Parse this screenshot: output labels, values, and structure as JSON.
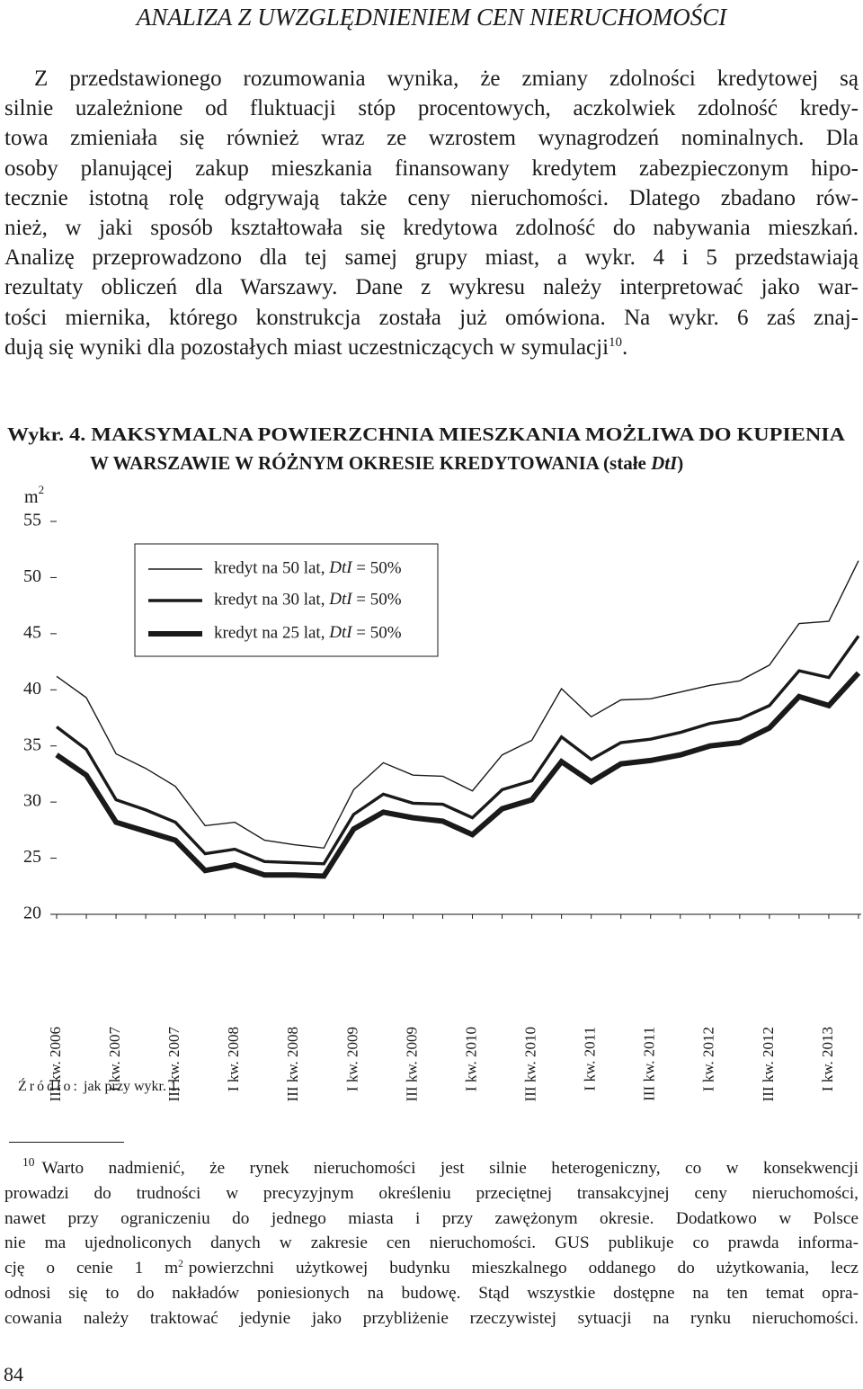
{
  "header": {
    "title": "ANALIZA Z UWZGLĘDNIENIEM CEN NIERUCHOMOŚCI"
  },
  "paragraph": {
    "lines": [
      "Z przedstawionego rozumowania wynika, że zmiany zdolności kredytowej są",
      "silnie uzależnione od fluktuacji stóp procentowych, aczkolwiek zdolność kredy-",
      "towa zmieniała się również wraz ze wzrostem wynagrodzeń nominalnych. Dla",
      "osoby planującej zakup mieszkania finansowany kredytem zabezpieczonym hipo-",
      "tecznie istotną rolę odgrywają także ceny nieruchomości. Dlatego zbadano rów-",
      "nież, w jaki sposób kształtowała się kredytowa zdolność do nabywania mieszkań.",
      "Analizę przeprowadzono dla tej samej grupy miast, a wykr. 4 i 5 przedstawiają",
      "rezultaty obliczeń dla Warszawy. Dane z wykresu należy interpretować jako war-",
      "tości miernika, którego konstrukcja została już omówiona. Na wykr. 6 zaś znaj-",
      "dują się wyniki dla pozostałych miast uczestniczących w symulacji"
    ],
    "footnote_ref": "10",
    "end": "."
  },
  "chart_data": {
    "type": "line",
    "title": [
      "Wykr. 4. MAKSYMALNA POWIERZCHNIA MIESZKANIA MOŻLIWA DO KUPIENIA",
      "W WARSZAWIE W RÓŻNYM OKRESIE KREDYTOWANIA (stałe DtI)"
    ],
    "y_unit": "m",
    "y_unit_sup": "2",
    "categories": [
      "III kw. 2006",
      null,
      "I kw. 2007",
      null,
      "III kw. 2007",
      null,
      "I kw. 2008",
      null,
      "III kw. 2008",
      null,
      "I kw. 2009",
      null,
      "III kw. 2009",
      null,
      "I kw. 2010",
      null,
      "III kw. 2010",
      null,
      "I kw. 2011",
      null,
      "III kw. 2011",
      null,
      "I kw. 2012",
      null,
      "III kw. 2012",
      null,
      "I kw. 2013",
      null
    ],
    "series": [
      {
        "name": "kredyt na 50 lat, DtI = 50%",
        "color": "#1a1a1a",
        "values": [
          41.2,
          39.3,
          34.3,
          33.0,
          31.4,
          27.9,
          28.2,
          26.6,
          26.2,
          25.9,
          31.1,
          33.5,
          32.4,
          32.3,
          31.0,
          34.2,
          35.5,
          40.1,
          37.6,
          39.1,
          39.2,
          39.8,
          40.4,
          40.8,
          42.2,
          45.9,
          46.1,
          51.5
        ]
      },
      {
        "name": "kredyt na 30 lat, DtI = 50%",
        "color": "#1a1a1a",
        "values": [
          36.7,
          34.7,
          30.2,
          29.3,
          28.2,
          25.4,
          25.8,
          24.7,
          24.6,
          24.5,
          28.9,
          30.7,
          29.9,
          29.8,
          28.6,
          31.1,
          31.9,
          35.8,
          33.8,
          35.3,
          35.6,
          36.2,
          37.0,
          37.4,
          38.6,
          41.7,
          41.1,
          44.8
        ]
      },
      {
        "name": "kredyt na 25 lat, DtI = 50%",
        "color": "#1a1a1a",
        "values": [
          34.2,
          32.4,
          28.2,
          27.4,
          26.6,
          23.9,
          24.4,
          23.5,
          23.5,
          23.4,
          27.6,
          29.1,
          28.6,
          28.3,
          27.1,
          29.4,
          30.2,
          33.6,
          31.8,
          33.4,
          33.7,
          34.2,
          35.0,
          35.3,
          36.6,
          39.4,
          38.6,
          41.5
        ]
      }
    ],
    "ylim": [
      20,
      55
    ],
    "yticks": [
      20,
      25,
      30,
      35,
      40,
      45,
      50,
      55
    ],
    "grid": false,
    "legend": "top-left"
  },
  "source": {
    "label": "Źródło:",
    "text": "jak przy wykr. 1."
  },
  "footnote": {
    "number": "10",
    "lines": [
      "Warto nadmienić, że rynek nieruchomości jest silnie heterogeniczny, co w konsekwencji",
      "prowadzi do trudności w precyzyjnym określeniu przeciętnej transakcyjnej ceny nieruchomości,",
      "nawet przy ograniczeniu do jednego miasta i przy zawężonym okresie. Dodatkowo w Polsce",
      "nie ma ujednoliconych danych w zakresie cen nieruchomości. GUS publikuje co prawda informa-"
    ],
    "unit_line": {
      "before": "cję o cenie 1 m",
      "sup": "2",
      "after": "powierzchni użytkowej budynku mieszkalnego oddanego do użytkowania, lecz"
    },
    "lines_end": [
      "odnosi się to do nakładów poniesionych na budowę. Stąd wszystkie dostępne na ten temat opra-",
      "cowania należy traktować jedynie jako przybliżenie rzeczywistej sytuacji na rynku nieruchomości."
    ]
  },
  "page_number": "84"
}
